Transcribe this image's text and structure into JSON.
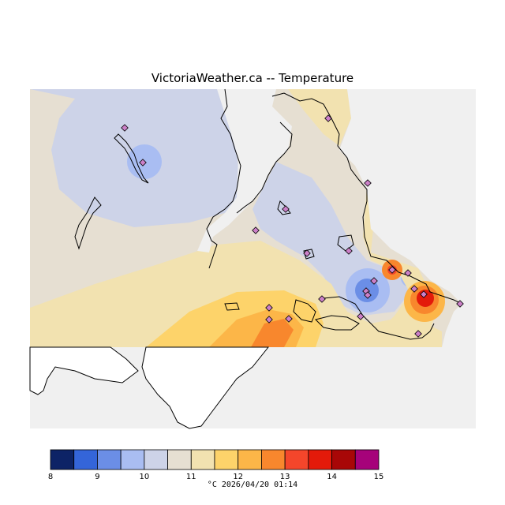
{
  "title": "VictoriaWeather.ca -- Temperature",
  "map": {
    "variable": "Temperature",
    "unit": "°C",
    "timestamp": "2026/04/20 01:14",
    "footer": "°C  2026/04/20 01:14"
  },
  "legend": {
    "ticks": [
      "8",
      "9",
      "10",
      "11",
      "12",
      "13",
      "14",
      "15"
    ],
    "colors": [
      "#0d2366",
      "#3465d9",
      "#6b8ee6",
      "#a9bdf2",
      "#cdd3e8",
      "#e6dfd2",
      "#f2e2b0",
      "#fdd36a",
      "#fcb648",
      "#f8872d",
      "#f4462b",
      "#e31a0a",
      "#a80707",
      "#a6027a"
    ]
  },
  "stations": 22
}
